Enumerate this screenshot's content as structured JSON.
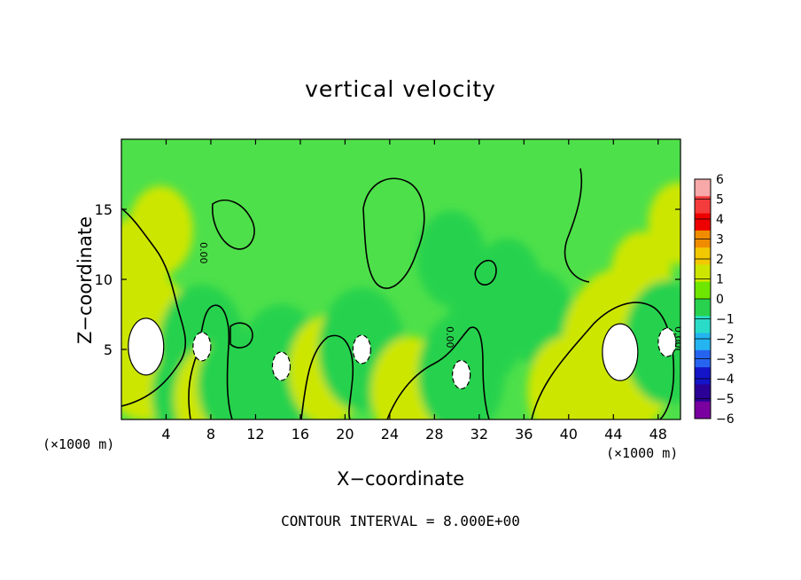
{
  "chart_data": {
    "type": "heatmap",
    "title": "vertical velocity",
    "xlabel": "X−coordinate",
    "ylabel": "Z−coordinate",
    "x_unit_left": "(×1000 m)",
    "x_unit_right": "(×1000 m)",
    "contour_note": "CONTOUR INTERVAL = 8.000E+00",
    "xlim": [
      0,
      50
    ],
    "ylim": [
      0,
      20
    ],
    "x_ticks": [
      4,
      8,
      12,
      16,
      20,
      24,
      28,
      32,
      36,
      40,
      44,
      48
    ],
    "y_ticks": [
      5,
      10,
      15
    ],
    "colorbar": {
      "range": [
        -6,
        6
      ],
      "levels": [
        6,
        5,
        4,
        3,
        2,
        1,
        0,
        -1,
        -2,
        -3,
        -4,
        -5,
        -6
      ],
      "colors": [
        "#f7a8a8",
        "#f53c3c",
        "#ef0000",
        "#f08c00",
        "#f2c800",
        "#cde600",
        "#6ee600",
        "#28d24e",
        "#2adcc8",
        "#24b4f0",
        "#2664f0",
        "#1414c8",
        "#2a0096",
        "#7a00a0"
      ]
    },
    "contour_labels": [
      "0.00",
      "0.00",
      "0.00"
    ],
    "features": [
      {
        "x": 2.2,
        "z": 5.2,
        "w": 4,
        "kind": "updraft_core"
      },
      {
        "x": 1.2,
        "z": 11.0,
        "w": 3,
        "kind": "updraft"
      },
      {
        "x": 3.5,
        "z": 13.5,
        "w": 2.5,
        "kind": "updraft"
      },
      {
        "x": 7.2,
        "z": 5.2,
        "w": -5,
        "kind": "downdraft"
      },
      {
        "x": 6.2,
        "z": 1.8,
        "w": -4,
        "kind": "downdraft"
      },
      {
        "x": 8.2,
        "z": 1.5,
        "w": 4,
        "kind": "updraft"
      },
      {
        "x": 10.3,
        "z": 2.5,
        "w": -4,
        "kind": "downdraft"
      },
      {
        "x": 14.3,
        "z": 3.8,
        "w": -5,
        "kind": "downdraft"
      },
      {
        "x": 18.4,
        "z": 3.5,
        "w": 4,
        "kind": "updraft"
      },
      {
        "x": 21.5,
        "z": 5.0,
        "w": -5,
        "kind": "downdraft"
      },
      {
        "x": 25.8,
        "z": 2.0,
        "w": 4,
        "kind": "updraft"
      },
      {
        "x": 27.6,
        "z": 1.0,
        "w": 4,
        "kind": "updraft"
      },
      {
        "x": 30.4,
        "z": 3.2,
        "w": -5,
        "kind": "downdraft"
      },
      {
        "x": 32.5,
        "z": 6.4,
        "w": -4,
        "kind": "downdraft"
      },
      {
        "x": 37.4,
        "z": 7.2,
        "w": -3,
        "kind": "downdraft"
      },
      {
        "x": 29.5,
        "z": 11.5,
        "w": -3,
        "kind": "downdraft"
      },
      {
        "x": 34.5,
        "z": 9.5,
        "w": -3,
        "kind": "downdraft"
      },
      {
        "x": 39.8,
        "z": 2.0,
        "w": 4,
        "kind": "updraft"
      },
      {
        "x": 44.6,
        "z": 4.8,
        "w": 5,
        "kind": "updraft_core"
      },
      {
        "x": 46.5,
        "z": 10.5,
        "w": 2,
        "kind": "updraft"
      },
      {
        "x": 48.8,
        "z": 5.5,
        "w": -5,
        "kind": "downdraft"
      },
      {
        "x": 49.8,
        "z": 14.0,
        "w": 2,
        "kind": "updraft"
      }
    ]
  }
}
